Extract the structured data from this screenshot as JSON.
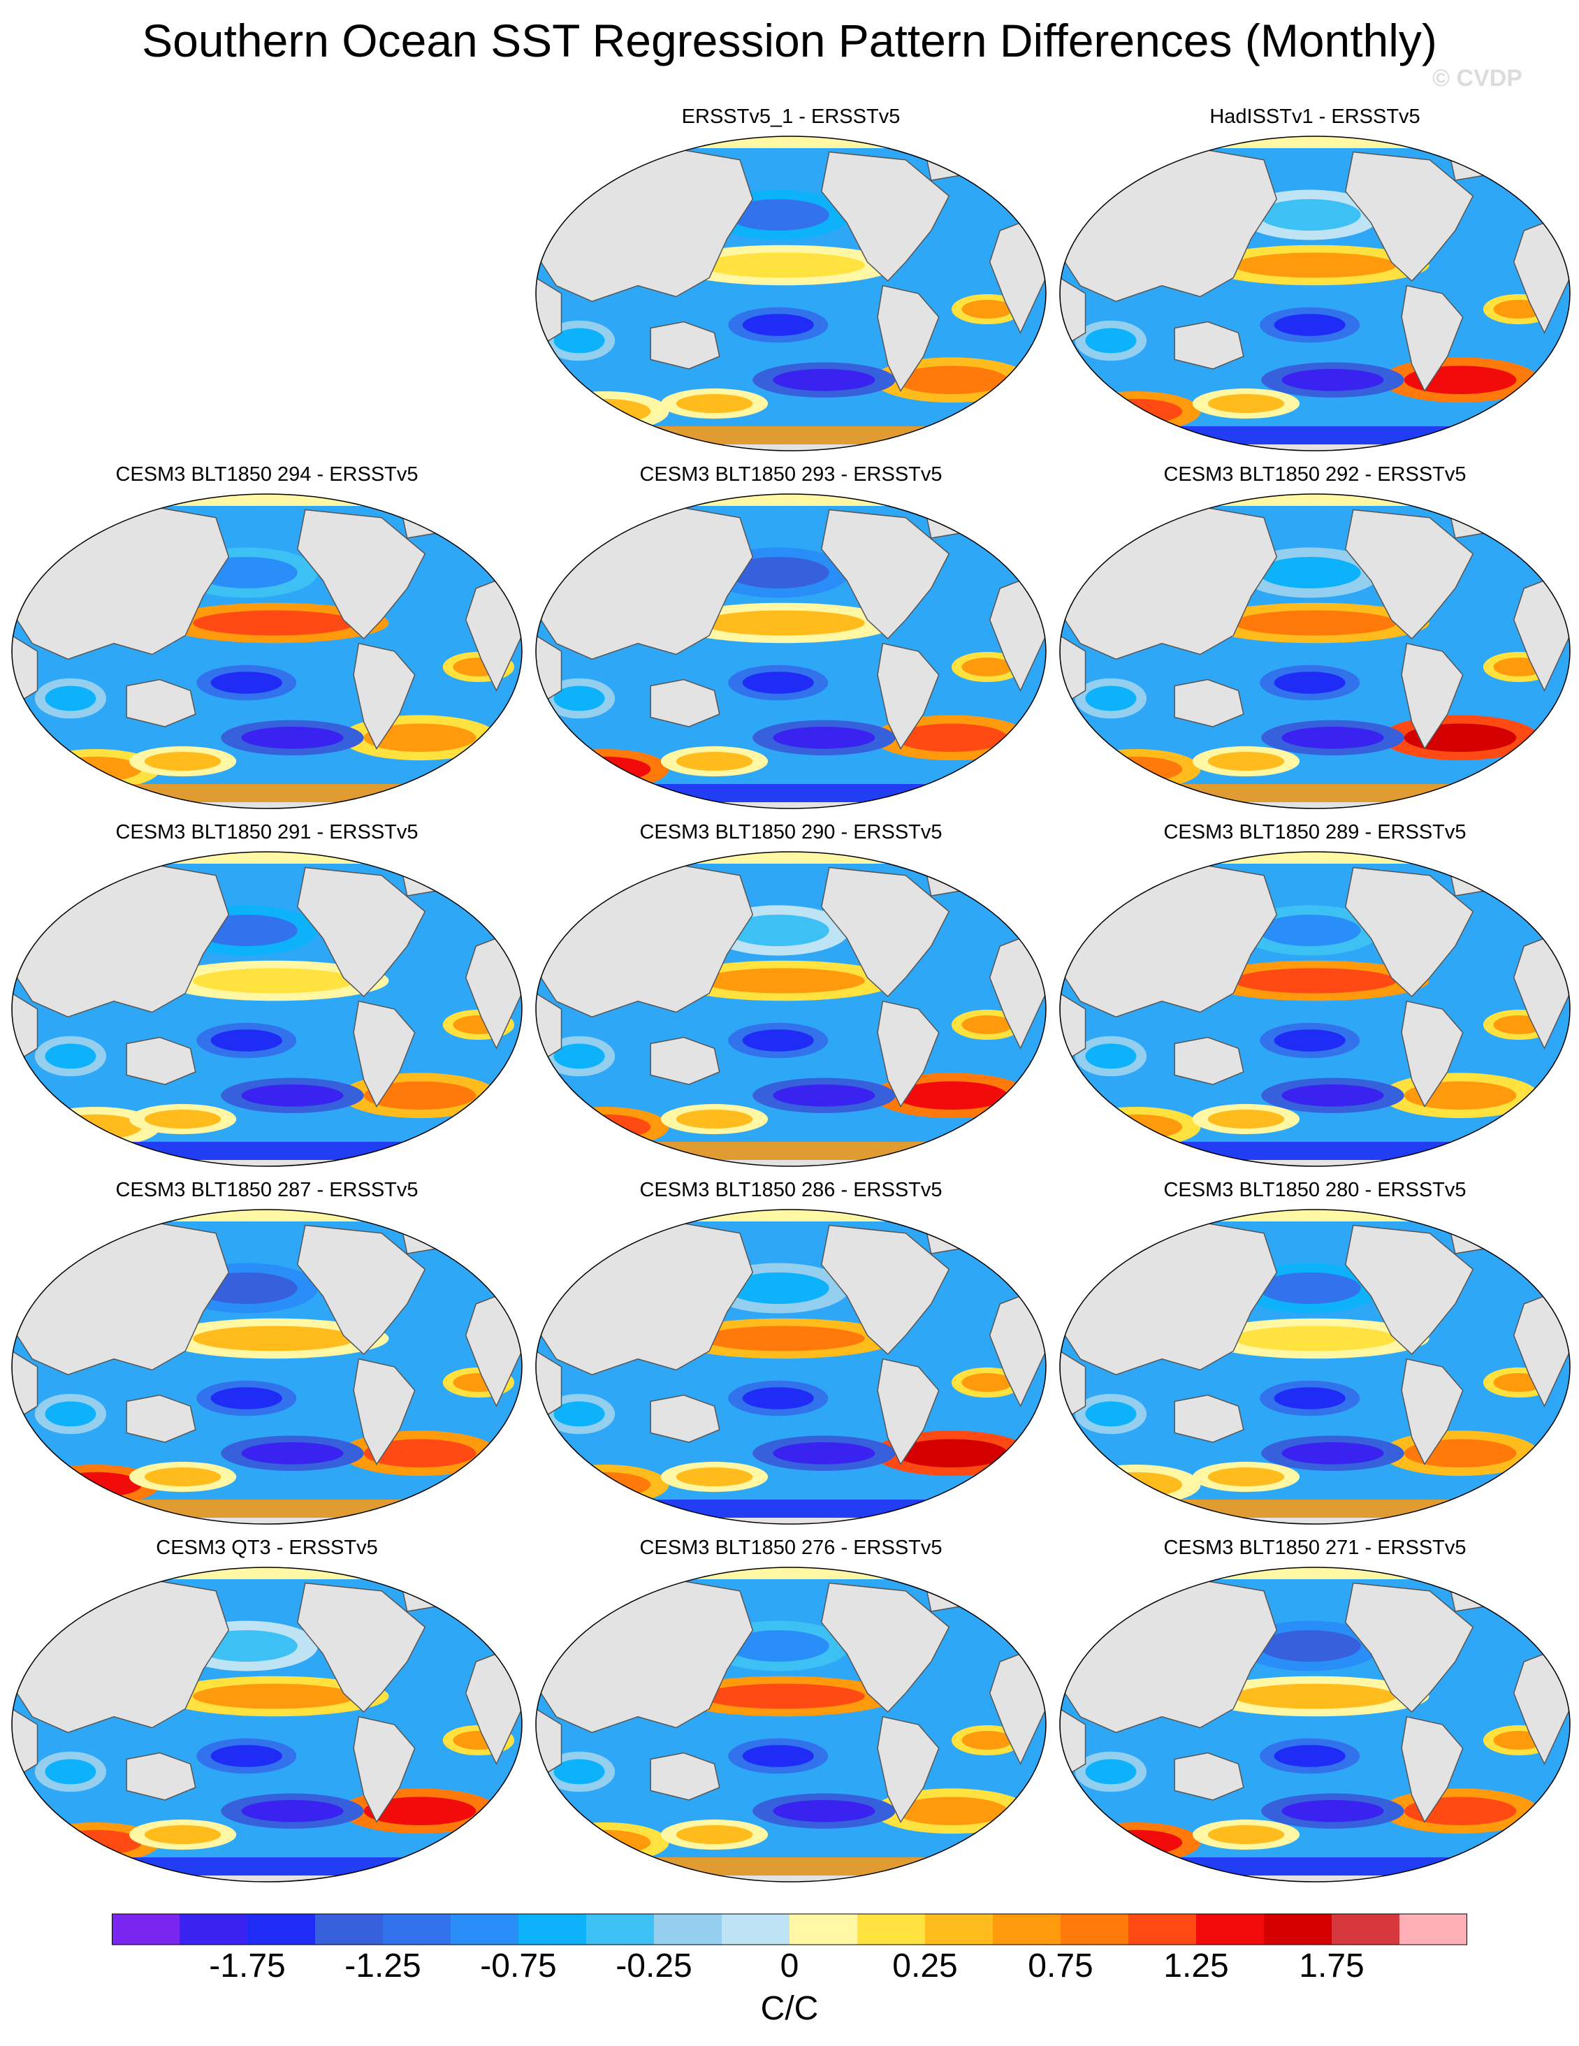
{
  "title": "Southern Ocean SST Regression Pattern Differences (Monthly)",
  "watermark": "© CVDP",
  "units": "C/C",
  "panels": [
    {
      "title": "ERSSTv5_1 - ERSSTv5"
    },
    {
      "title": "HadISSTv1 - ERSSTv5"
    },
    {
      "title": "CESM3 BLT1850 294 - ERSSTv5"
    },
    {
      "title": "CESM3 BLT1850 293 - ERSSTv5"
    },
    {
      "title": "CESM3 BLT1850 292 - ERSSTv5"
    },
    {
      "title": "CESM3 BLT1850 291 - ERSSTv5"
    },
    {
      "title": "CESM3 BLT1850 290 - ERSSTv5"
    },
    {
      "title": "CESM3 BLT1850 289 - ERSSTv5"
    },
    {
      "title": "CESM3 BLT1850 287 - ERSSTv5"
    },
    {
      "title": "CESM3 BLT1850 286 - ERSSTv5"
    },
    {
      "title": "CESM3 BLT1850 280 - ERSSTv5"
    },
    {
      "title": "CESM3 QT3 - ERSSTv5"
    },
    {
      "title": "CESM3 BLT1850 276 - ERSSTv5"
    },
    {
      "title": "CESM3 BLT1850 271 - ERSSTv5"
    }
  ],
  "colorbar": {
    "colors": [
      "#7b25f0",
      "#3a22f0",
      "#1f2cf5",
      "#3760dd",
      "#3272ec",
      "#2a8ef9",
      "#0db2fb",
      "#3dc1f5",
      "#94cff0",
      "#bde3f4",
      "#fff7a4",
      "#ffe23f",
      "#ffbc1c",
      "#ff9a0d",
      "#ff7a0a",
      "#ff4a14",
      "#f20b0b",
      "#d40000",
      "#d6383e",
      "#ffb0b7"
    ],
    "labels": [
      "-1.75",
      "-1.25",
      "-0.75",
      "-0.25",
      "0",
      "0.25",
      "0.75",
      "1.25",
      "1.75"
    ]
  },
  "colors": {
    "land": "#e3e3e3",
    "ocean_base": "#2fa7f7",
    "coast": "#555555"
  }
}
